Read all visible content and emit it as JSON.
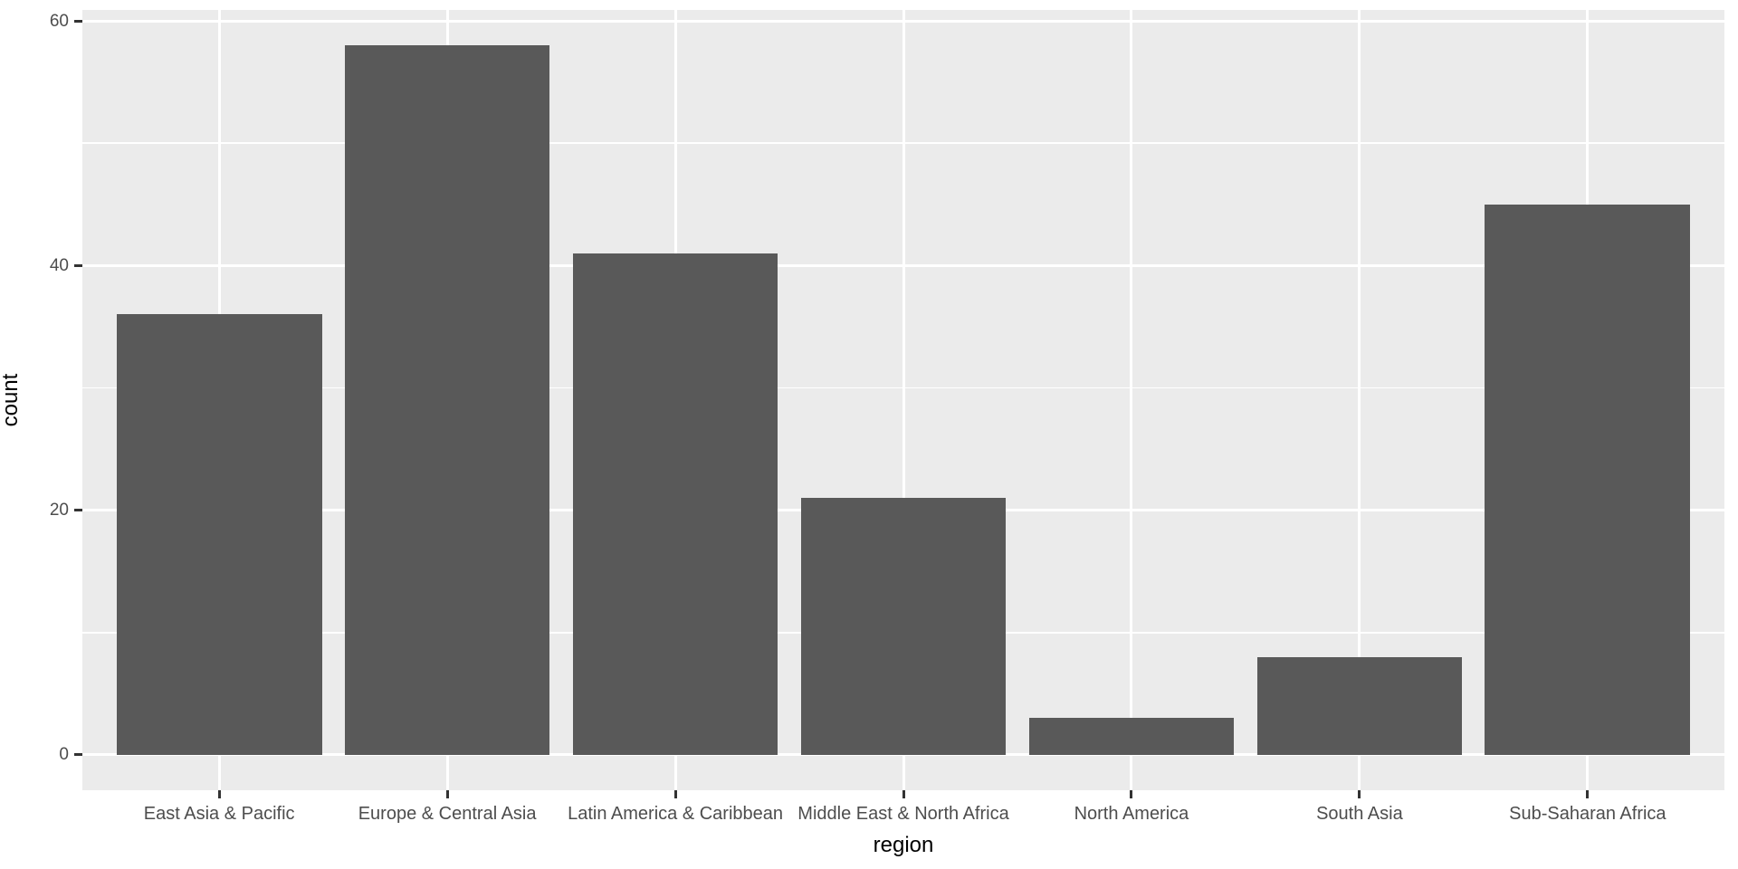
{
  "chart_data": {
    "type": "bar",
    "title": "",
    "xlabel": "region",
    "ylabel": "count",
    "categories": [
      "East Asia & Pacific",
      "Europe & Central Asia",
      "Latin America & Caribbean",
      "Middle East & North Africa",
      "North America",
      "South Asia",
      "Sub-Saharan Africa"
    ],
    "values": [
      36,
      58,
      41,
      21,
      3,
      8,
      45
    ],
    "y_major_ticks": [
      0,
      20,
      40,
      60
    ],
    "y_major_tick_labels": [
      "0",
      "20",
      "40",
      "60"
    ],
    "y_minor_ticks": [
      10,
      30,
      50
    ],
    "ylim": [
      -2.9,
      60.9
    ],
    "grid": "on",
    "legend": "none",
    "style": "ggplot2-default",
    "colors": {
      "bar_fill": "#595959",
      "panel_background": "#EBEBEB",
      "gridline": "#FFFFFF",
      "tick_mark": "#333333",
      "tick_label": "#4D4D4D",
      "axis_title": "#000000",
      "figure_background": "#FFFFFF"
    }
  }
}
